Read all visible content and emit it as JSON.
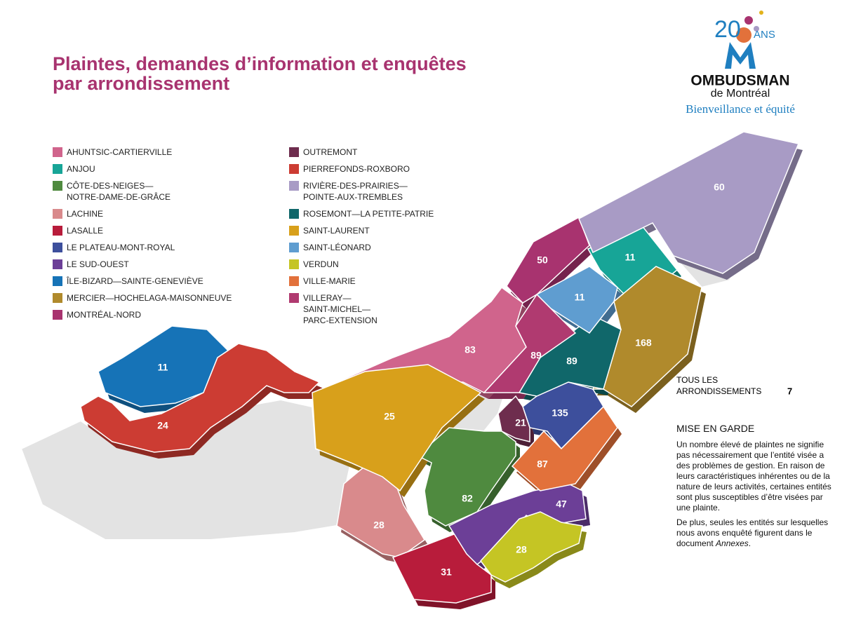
{
  "title_lines": [
    "Plaintes, demandes d’information et enquêtes",
    "par arrondissement"
  ],
  "logo": {
    "years": "20",
    "years_word": "ANS",
    "name": "OMBUDSMAN",
    "city": "de Montréal",
    "tagline": "Bienveillance et équité"
  },
  "legend": {
    "items": [
      {
        "lines": [
          "AHUNTSIC-CARTIERVILLE"
        ],
        "color": "#d0648c",
        "value": 83
      },
      {
        "lines": [
          "ANJOU"
        ],
        "color": "#17a597",
        "value": 11
      },
      {
        "lines": [
          "CÔTE-DES-NEIGES—",
          "NOTRE-DAME-DE-GRÂCE"
        ],
        "color": "#4f8a3f",
        "value": 82
      },
      {
        "lines": [
          "LACHINE"
        ],
        "color": "#d98a8c",
        "value": 28
      },
      {
        "lines": [
          "LASALLE"
        ],
        "color": "#b81c3b",
        "value": 31
      },
      {
        "lines": [
          "LE PLATEAU-MONT-ROYAL"
        ],
        "color": "#3d4f9c",
        "value": 135
      },
      {
        "lines": [
          "LE SUD-OUEST"
        ],
        "color": "#6c3f97",
        "value": 47
      },
      {
        "lines": [
          "ÎLE-BIZARD—SAINTE-GENEVIÈVE"
        ],
        "color": "#1673b7",
        "value": 11
      },
      {
        "lines": [
          "MERCIER—HOCHELAGA-MAISONNEUVE"
        ],
        "color": "#b08a2c",
        "value": 168
      },
      {
        "lines": [
          "MONTRÉAL-NORD"
        ],
        "color": "#a8336f",
        "value": 50
      },
      {
        "lines": [
          "OUTREMONT"
        ],
        "color": "#6e2d4e",
        "value": 21
      },
      {
        "lines": [
          "PIERREFONDS-ROXBORO"
        ],
        "color": "#cc3c33",
        "value": 24
      },
      {
        "lines": [
          "RIVIÈRE-DES-PRAIRIES—",
          "POINTE-AUX-TREMBLES"
        ],
        "color": "#a89bc5",
        "value": 60
      },
      {
        "lines": [
          "ROSEMONT—LA PETITE-PATRIE"
        ],
        "color": "#10676a",
        "value": 89
      },
      {
        "lines": [
          "SAINT-LAURENT"
        ],
        "color": "#d8a01b",
        "value": 25
      },
      {
        "lines": [
          "SAINT-LÉONARD"
        ],
        "color": "#5f9dd0",
        "value": 11
      },
      {
        "lines": [
          "VERDUN"
        ],
        "color": "#c5c524",
        "value": 28
      },
      {
        "lines": [
          "VILLE-MARIE"
        ],
        "color": "#e2713b",
        "value": 87
      },
      {
        "lines": [
          "VILLERAY—",
          "SAINT-MICHEL—",
          "PARC-EXTENSION"
        ],
        "color": "#b03a70",
        "value": 89
      }
    ]
  },
  "all_districts": {
    "lines": [
      "TOUS LES",
      "ARRONDISSEMENTS"
    ],
    "value": 7
  },
  "warning": {
    "heading": "MISE EN GARDE",
    "paragraph1": "Un nombre élevé de plaintes ne signifie pas nécessairement que l’entité visée a des problèmes de gestion. En raison de leurs caractéristiques inhérentes ou de la nature de leurs activités, certaines entités sont plus susceptibles d’être visées par une plainte.",
    "paragraph2": [
      "De plus, seules les entités sur lesquelles nous avons enquêté figurent dans le document ",
      "Annexes",
      "."
    ]
  }
}
